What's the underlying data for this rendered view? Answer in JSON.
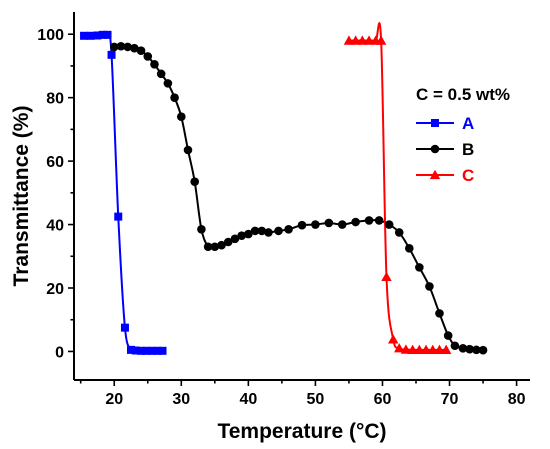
{
  "chart_data": {
    "type": "line",
    "xlabel": "Temperature (°C)",
    "ylabel": "Transmittance (%)",
    "xlim": [
      14,
      82
    ],
    "ylim": [
      -9,
      107
    ],
    "xticks": [
      20,
      30,
      40,
      50,
      60,
      70,
      80
    ],
    "yticks": [
      0,
      20,
      40,
      60,
      80,
      100
    ],
    "legend": {
      "title": "C = 0.5 wt%",
      "placement": "right"
    },
    "series": [
      {
        "name": "A",
        "color": "#0000ff",
        "marker": "square",
        "points": [
          [
            15.5,
            99.5
          ],
          [
            16.5,
            99.5
          ],
          [
            17.5,
            99.6
          ],
          [
            18.3,
            99.8
          ],
          [
            19.0,
            99.8
          ],
          [
            19.6,
            93.5
          ],
          [
            20.6,
            42.5
          ],
          [
            21.6,
            7.5
          ],
          [
            22.5,
            0.5
          ],
          [
            23.2,
            0.3
          ],
          [
            24,
            0.2
          ],
          [
            24.8,
            0.2
          ],
          [
            25.6,
            0.2
          ],
          [
            26.4,
            0.2
          ],
          [
            27.2,
            0.2
          ]
        ]
      },
      {
        "name": "B",
        "color": "#000000",
        "marker": "circle",
        "points": [
          [
            20,
            96
          ],
          [
            21,
            96.2
          ],
          [
            22,
            96
          ],
          [
            23,
            95.6
          ],
          [
            24,
            94.8
          ],
          [
            25,
            93
          ],
          [
            26,
            90.5
          ],
          [
            27,
            87.5
          ],
          [
            28,
            84.5
          ],
          [
            29,
            80
          ],
          [
            30,
            74
          ],
          [
            31,
            63.5
          ],
          [
            32,
            53.5
          ],
          [
            33,
            38.5
          ],
          [
            34,
            33
          ],
          [
            35,
            33
          ],
          [
            36,
            33.5
          ],
          [
            37,
            34.5
          ],
          [
            38,
            35.5
          ],
          [
            39,
            36.5
          ],
          [
            40,
            37
          ],
          [
            41,
            38
          ],
          [
            42,
            38
          ],
          [
            43,
            37.5
          ],
          [
            44.5,
            38
          ],
          [
            46,
            38.5
          ],
          [
            48,
            39.8
          ],
          [
            50,
            40
          ],
          [
            52,
            40.5
          ],
          [
            54,
            40
          ],
          [
            56,
            40.8
          ],
          [
            58,
            41.3
          ],
          [
            59.5,
            41.3
          ],
          [
            61,
            40
          ],
          [
            62.5,
            37.5
          ],
          [
            64,
            32.5
          ],
          [
            65.5,
            26.5
          ],
          [
            67,
            20.5
          ],
          [
            68.5,
            12
          ],
          [
            69.8,
            5
          ],
          [
            70.8,
            1.8
          ],
          [
            72,
            1
          ],
          [
            73,
            0.7
          ],
          [
            74,
            0.5
          ],
          [
            75,
            0.4
          ]
        ]
      },
      {
        "name": "C",
        "color": "#ff0000",
        "marker": "triangle",
        "points": [
          [
            55,
            98
          ],
          [
            56,
            98
          ],
          [
            57,
            98
          ],
          [
            58,
            98
          ],
          [
            59,
            98
          ],
          [
            59.8,
            98
          ],
          [
            60.6,
            23.5
          ],
          [
            61.6,
            3.8
          ],
          [
            62.5,
            1
          ],
          [
            63.5,
            0.6
          ],
          [
            64.5,
            0.5
          ],
          [
            65.5,
            0.5
          ],
          [
            66.5,
            0.5
          ],
          [
            67.5,
            0.5
          ],
          [
            68.5,
            0.5
          ],
          [
            69.5,
            0.5
          ]
        ]
      }
    ]
  }
}
